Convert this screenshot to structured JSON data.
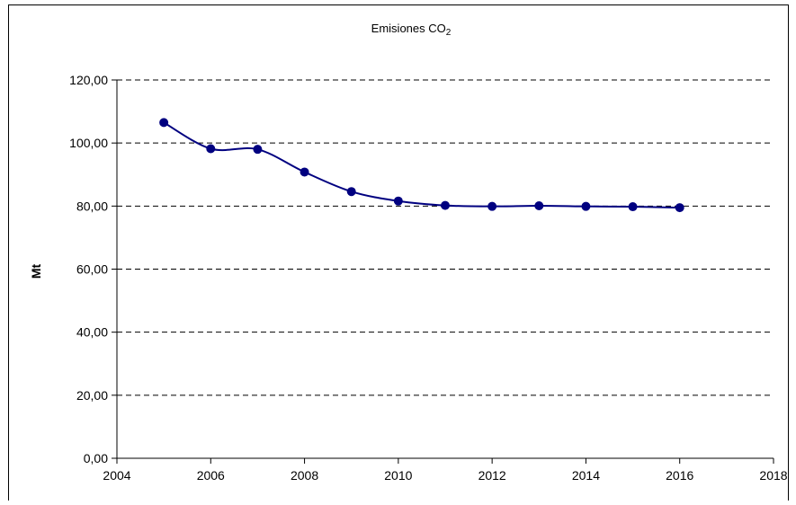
{
  "chart_data": {
    "type": "line",
    "title": "Emisiones CO2",
    "title_main": "Emisiones CO",
    "title_subscript": "2",
    "xlabel": "",
    "ylabel": "Mt",
    "xlim": [
      2004,
      2018
    ],
    "ylim": [
      0,
      120
    ],
    "x_ticks": [
      2004,
      2006,
      2008,
      2010,
      2012,
      2014,
      2016,
      2018
    ],
    "x_tick_labels": [
      "2004",
      "2006",
      "2008",
      "2010",
      "2012",
      "2014",
      "2016",
      "2018"
    ],
    "y_ticks": [
      0,
      20,
      40,
      60,
      80,
      100,
      120
    ],
    "y_tick_labels": [
      "0,00",
      "20,00",
      "40,00",
      "60,00",
      "80,00",
      "100,00",
      "120,00"
    ],
    "grid": "horizontal dashed",
    "series": [
      {
        "color": "#000080",
        "smooth": true,
        "marker": "circle",
        "x": [
          2005,
          2006,
          2007,
          2008,
          2009,
          2010,
          2011,
          2012,
          2013,
          2014,
          2015,
          2016
        ],
        "values": [
          106.5,
          98.2,
          98.0,
          90.8,
          84.6,
          81.6,
          80.2,
          79.9,
          80.1,
          79.9,
          79.8,
          79.5
        ]
      }
    ]
  }
}
